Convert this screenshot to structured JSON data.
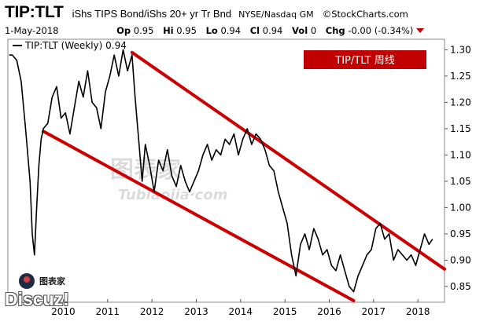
{
  "header": {
    "symbol": "TIP:TLT",
    "description": "iShs TIPS Bond/iShs 20+ yr Tr Bnd",
    "exchange": "NYSE/Nasdaq GM",
    "brand": "©StockCharts.com",
    "date": "1-May-2018",
    "op_label": "Op",
    "op": "0.95",
    "hi_label": "Hi",
    "hi": "0.95",
    "lo_label": "Lo",
    "lo": "0.94",
    "cl_label": "Cl",
    "cl": "0.94",
    "vol_label": "Vol",
    "vol": "0",
    "chg_label": "Chg",
    "chg": "-0.00 (-0.34%)"
  },
  "chart_data": {
    "type": "line",
    "title": "TIP/TLT 周线",
    "series_label": "TIP:TLT (Weekly) 0.94",
    "x_axis_labels": [
      "2010",
      "2011",
      "2012",
      "2013",
      "2014",
      "2015",
      "2016",
      "2017",
      "2018"
    ],
    "y_ticks": [
      0.85,
      0.9,
      0.95,
      1.0,
      1.05,
      1.1,
      1.15,
      1.2,
      1.25,
      1.3
    ],
    "ylim": [
      0.82,
      1.32
    ],
    "xlim": [
      2008.75,
      2018.6
    ],
    "grid": false,
    "colors": {
      "line": "#000000",
      "channel": "#cc0000",
      "title_box": "#c00000"
    },
    "series": [
      {
        "name": "TIP:TLT (Weekly) 0.94",
        "x": [
          2008.78,
          2008.85,
          2008.95,
          2009.05,
          2009.15,
          2009.25,
          2009.3,
          2009.35,
          2009.4,
          2009.45,
          2009.5,
          2009.55,
          2009.65,
          2009.75,
          2009.85,
          2009.95,
          2010.05,
          2010.15,
          2010.25,
          2010.35,
          2010.45,
          2010.55,
          2010.65,
          2010.75,
          2010.85,
          2010.95,
          2011.05,
          2011.15,
          2011.25,
          2011.35,
          2011.45,
          2011.55,
          2011.62,
          2011.7,
          2011.78,
          2011.85,
          2011.95,
          2012.05,
          2012.15,
          2012.25,
          2012.35,
          2012.45,
          2012.55,
          2012.65,
          2012.75,
          2012.85,
          2012.95,
          2013.05,
          2013.15,
          2013.25,
          2013.35,
          2013.45,
          2013.55,
          2013.65,
          2013.75,
          2013.85,
          2013.95,
          2014.05,
          2014.15,
          2014.25,
          2014.35,
          2014.45,
          2014.55,
          2014.65,
          2014.75,
          2014.85,
          2014.95,
          2015.05,
          2015.15,
          2015.25,
          2015.35,
          2015.45,
          2015.55,
          2015.65,
          2015.75,
          2015.85,
          2015.95,
          2016.05,
          2016.15,
          2016.25,
          2016.35,
          2016.45,
          2016.55,
          2016.65,
          2016.75,
          2016.85,
          2016.95,
          2017.05,
          2017.15,
          2017.25,
          2017.35,
          2017.45,
          2017.55,
          2017.65,
          2017.75,
          2017.85,
          2017.95,
          2018.05,
          2018.15,
          2018.25,
          2018.33
        ],
        "y": [
          1.29,
          1.29,
          1.28,
          1.24,
          1.15,
          1.05,
          0.95,
          0.91,
          1.0,
          1.08,
          1.13,
          1.15,
          1.16,
          1.21,
          1.23,
          1.17,
          1.18,
          1.14,
          1.19,
          1.24,
          1.21,
          1.26,
          1.2,
          1.19,
          1.15,
          1.22,
          1.25,
          1.29,
          1.25,
          1.3,
          1.26,
          1.29,
          1.21,
          1.13,
          1.05,
          1.12,
          1.08,
          1.03,
          1.09,
          1.07,
          1.11,
          1.06,
          1.04,
          1.08,
          1.05,
          1.03,
          1.05,
          1.07,
          1.1,
          1.12,
          1.09,
          1.11,
          1.1,
          1.13,
          1.12,
          1.14,
          1.1,
          1.13,
          1.15,
          1.12,
          1.14,
          1.13,
          1.11,
          1.08,
          1.07,
          1.03,
          1.0,
          0.97,
          0.91,
          0.87,
          0.93,
          0.95,
          0.92,
          0.96,
          0.94,
          0.91,
          0.92,
          0.89,
          0.88,
          0.91,
          0.88,
          0.85,
          0.84,
          0.87,
          0.89,
          0.91,
          0.92,
          0.96,
          0.97,
          0.94,
          0.95,
          0.9,
          0.92,
          0.91,
          0.9,
          0.91,
          0.89,
          0.92,
          0.95,
          0.93,
          0.94
        ]
      }
    ],
    "channel_lines": [
      {
        "name": "upper",
        "x": [
          2011.55,
          2018.6
        ],
        "y": [
          1.295,
          0.883
        ]
      },
      {
        "name": "lower",
        "x": [
          2009.55,
          2016.55
        ],
        "y": [
          1.145,
          0.823
        ]
      }
    ]
  },
  "watermark": {
    "site_label": "Tubiaojia·com",
    "logo_label": "图表家",
    "forum_label": "Discuz!"
  }
}
